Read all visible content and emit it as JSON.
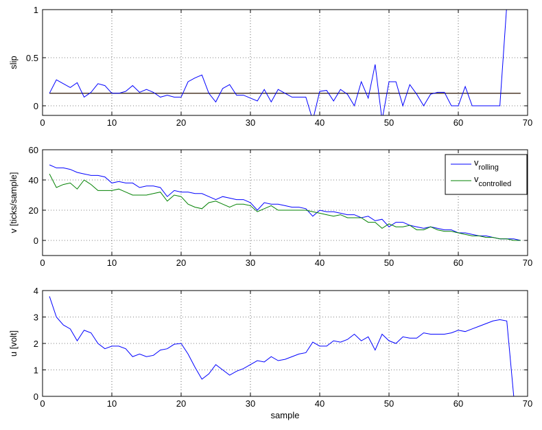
{
  "chart_data": [
    {
      "type": "line",
      "ylabel": "slip",
      "x": [
        1,
        2,
        3,
        4,
        5,
        6,
        7,
        8,
        9,
        10,
        11,
        12,
        13,
        14,
        15,
        16,
        17,
        18,
        19,
        20,
        21,
        22,
        23,
        24,
        25,
        26,
        27,
        28,
        29,
        30,
        31,
        32,
        33,
        34,
        35,
        36,
        37,
        38,
        39,
        40,
        41,
        42,
        43,
        44,
        45,
        46,
        47,
        48,
        49,
        50,
        51,
        52,
        53,
        54,
        55,
        56,
        57,
        58,
        59,
        60,
        61,
        62,
        63,
        64,
        65,
        66,
        67
      ],
      "series": [
        {
          "color": "#0000ff",
          "values": [
            0.13,
            0.27,
            0.23,
            0.19,
            0.24,
            0.09,
            0.14,
            0.23,
            0.21,
            0.13,
            0.13,
            0.15,
            0.21,
            0.14,
            0.17,
            0.14,
            0.09,
            0.11,
            0.09,
            0.09,
            0.25,
            0.29,
            0.32,
            0.13,
            0.04,
            0.18,
            0.22,
            0.11,
            0.11,
            0.08,
            0.05,
            0.17,
            0.04,
            0.17,
            0.13,
            0.09,
            0.09,
            0.09,
            -0.15,
            0.15,
            0.16,
            0.05,
            0.17,
            0.12,
            0,
            0.25,
            0.08,
            0.43,
            -0.15,
            0.25,
            0.25,
            0,
            0.22,
            0.12,
            0,
            0.12,
            0.14,
            0.14,
            0,
            0,
            0.2,
            0,
            0,
            0,
            0,
            0,
            1.05
          ]
        }
      ],
      "reference_line": {
        "value": 0.13,
        "x": [
          1,
          69
        ],
        "color": "#4d3a2a"
      },
      "xlim": [
        0,
        70
      ],
      "xticks": [
        0,
        10,
        20,
        30,
        40,
        50,
        60,
        70
      ],
      "ylim": [
        -0.1,
        1
      ],
      "yticks": [
        0,
        0.5,
        1
      ],
      "grid": true
    },
    {
      "type": "line",
      "ylabel": "v [ticks/sample]",
      "x": [
        1,
        2,
        3,
        4,
        5,
        6,
        7,
        8,
        9,
        10,
        11,
        12,
        13,
        14,
        15,
        16,
        17,
        18,
        19,
        20,
        21,
        22,
        23,
        24,
        25,
        26,
        27,
        28,
        29,
        30,
        31,
        32,
        33,
        34,
        35,
        36,
        37,
        38,
        39,
        40,
        41,
        42,
        43,
        44,
        45,
        46,
        47,
        48,
        49,
        50,
        51,
        52,
        53,
        54,
        55,
        56,
        57,
        58,
        59,
        60,
        61,
        62,
        63,
        64,
        65,
        66,
        67,
        68,
        69
      ],
      "series": [
        {
          "name": "v",
          "subscript": "rolling",
          "color": "#0000ff",
          "values": [
            50,
            48,
            48,
            47,
            45,
            44,
            43,
            43,
            42,
            38,
            39,
            38,
            38,
            35,
            36,
            36,
            35,
            29,
            33,
            32,
            32,
            31,
            31,
            29,
            27,
            29,
            28,
            27,
            27,
            25,
            20,
            25,
            24,
            24,
            23,
            22,
            22,
            21,
            16,
            20,
            19,
            19,
            18,
            17,
            17,
            15,
            16,
            13,
            14,
            9,
            12,
            12,
            10,
            9,
            8,
            9,
            8,
            7,
            7,
            5,
            5,
            4,
            3,
            3,
            2,
            1,
            1,
            1,
            0
          ]
        },
        {
          "name": "v",
          "subscript": "controlled",
          "color": "#008000",
          "values": [
            44,
            35,
            37,
            38,
            34,
            40,
            37,
            33,
            33,
            33,
            34,
            32,
            30,
            30,
            30,
            31,
            32,
            26,
            30,
            29,
            24,
            22,
            21,
            25,
            26,
            24,
            22,
            24,
            24,
            23,
            19,
            21,
            23,
            20,
            20,
            20,
            20,
            20,
            19,
            18,
            17,
            16,
            17,
            15,
            15,
            15,
            12,
            12,
            8,
            11,
            9,
            9,
            10,
            7,
            7,
            9,
            7,
            6,
            6,
            5,
            4,
            3,
            3,
            2,
            2,
            1,
            1,
            0,
            0
          ]
        }
      ],
      "legend": "upper right",
      "xlim": [
        0,
        70
      ],
      "xticks": [
        0,
        10,
        20,
        30,
        40,
        50,
        60,
        70
      ],
      "ylim": [
        -10,
        60
      ],
      "yticks": [
        0,
        20,
        40,
        60
      ],
      "grid": true
    },
    {
      "type": "line",
      "ylabel": "u [volt]",
      "xlabel": "sample",
      "x": [
        1,
        2,
        3,
        4,
        5,
        6,
        7,
        8,
        9,
        10,
        11,
        12,
        13,
        14,
        15,
        16,
        17,
        18,
        19,
        20,
        21,
        22,
        23,
        24,
        25,
        26,
        27,
        28,
        29,
        30,
        31,
        32,
        33,
        34,
        35,
        36,
        37,
        38,
        39,
        40,
        41,
        42,
        43,
        44,
        45,
        46,
        47,
        48,
        49,
        50,
        51,
        52,
        53,
        54,
        55,
        56,
        57,
        58,
        59,
        60,
        61,
        62,
        63,
        64,
        65,
        66,
        67,
        68,
        69
      ],
      "series": [
        {
          "color": "#0000ff",
          "values": [
            3.78,
            3.0,
            2.7,
            2.55,
            2.1,
            2.5,
            2.4,
            2.0,
            1.8,
            1.9,
            1.9,
            1.8,
            1.5,
            1.6,
            1.5,
            1.55,
            1.75,
            1.8,
            1.97,
            2.0,
            1.6,
            1.1,
            0.65,
            0.85,
            1.2,
            1.0,
            0.8,
            0.95,
            1.05,
            1.2,
            1.35,
            1.3,
            1.5,
            1.35,
            1.4,
            1.5,
            1.6,
            1.65,
            2.05,
            1.9,
            1.9,
            2.1,
            2.05,
            2.15,
            2.35,
            2.1,
            2.25,
            1.75,
            2.35,
            2.1,
            2.0,
            2.25,
            2.2,
            2.2,
            2.4,
            2.35,
            2.35,
            2.35,
            2.4,
            2.5,
            2.45,
            2.55,
            2.65,
            2.75,
            2.85,
            2.9,
            2.85,
            0,
            0
          ]
        }
      ],
      "xlim": [
        0,
        70
      ],
      "xticks": [
        0,
        10,
        20,
        30,
        40,
        50,
        60,
        70
      ],
      "ylim": [
        0,
        4
      ],
      "yticks": [
        0,
        1,
        2,
        3,
        4
      ],
      "grid": true
    }
  ]
}
